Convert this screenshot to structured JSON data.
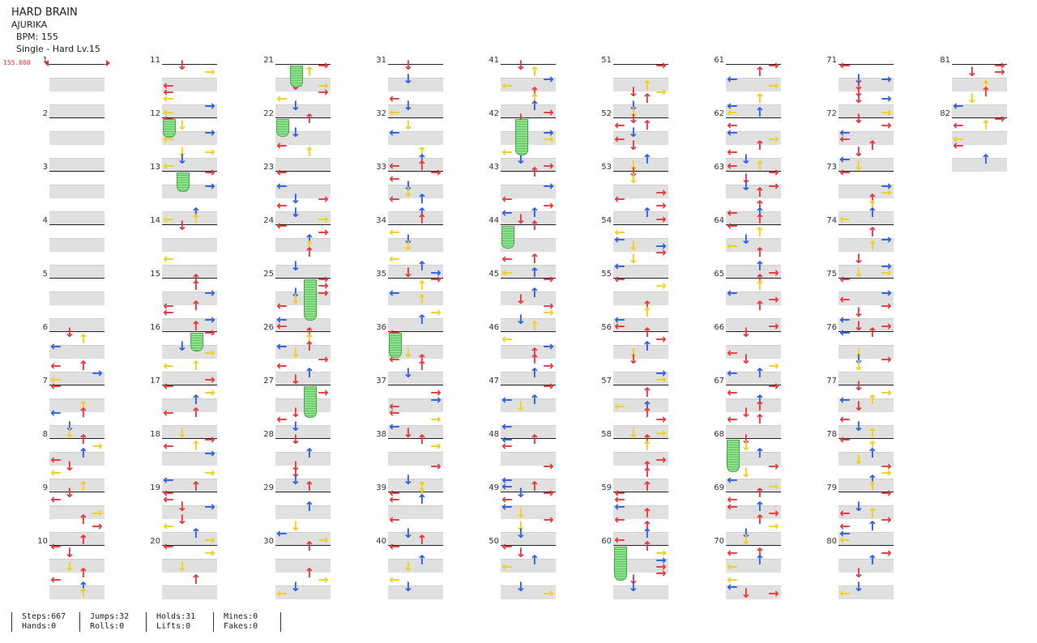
{
  "header": {
    "title": "HARD BRAIN",
    "artist": "AJURIKA",
    "bpm_line": "BPM: 155",
    "chart_line": "Single - Hard  Lv.15"
  },
  "bpm_marker": "155.000",
  "colors": {
    "red": "#e8383d",
    "blue": "#2f5fe6",
    "yellow": "#f0d020",
    "hold": "#8fe08f"
  },
  "columns": [
    {
      "measures": [
        "1",
        "2",
        "3",
        "4",
        "5",
        "6",
        "7",
        "8",
        "9",
        "10"
      ]
    },
    {
      "measures": [
        "11",
        "12",
        "13",
        "14",
        "15",
        "16",
        "17",
        "18",
        "19",
        "20"
      ]
    },
    {
      "measures": [
        "21",
        "22",
        "23",
        "24",
        "25",
        "26",
        "27",
        "28",
        "29",
        "30"
      ]
    },
    {
      "measures": [
        "31",
        "32",
        "33",
        "34",
        "35",
        "36",
        "37",
        "38",
        "39",
        "40"
      ]
    },
    {
      "measures": [
        "41",
        "42",
        "43",
        "44",
        "45",
        "46",
        "47",
        "48",
        "49",
        "50"
      ]
    },
    {
      "measures": [
        "51",
        "52",
        "53",
        "54",
        "55",
        "56",
        "57",
        "58",
        "59",
        "60"
      ]
    },
    {
      "measures": [
        "61",
        "62",
        "63",
        "64",
        "65",
        "66",
        "67",
        "68",
        "69",
        "70"
      ]
    },
    {
      "measures": [
        "71",
        "72",
        "73",
        "74",
        "75",
        "76",
        "77",
        "78",
        "79",
        "80"
      ]
    },
    {
      "measures": [
        "81",
        "82"
      ]
    }
  ],
  "stats": [
    {
      "a": "Steps:667",
      "b": "Hands:0"
    },
    {
      "a": "Jumps:32",
      "b": "Rolls:0"
    },
    {
      "a": "Holds:31",
      "b": "Lifts:0"
    },
    {
      "a": "Mines:0",
      "b": "Fakes:0"
    }
  ]
}
